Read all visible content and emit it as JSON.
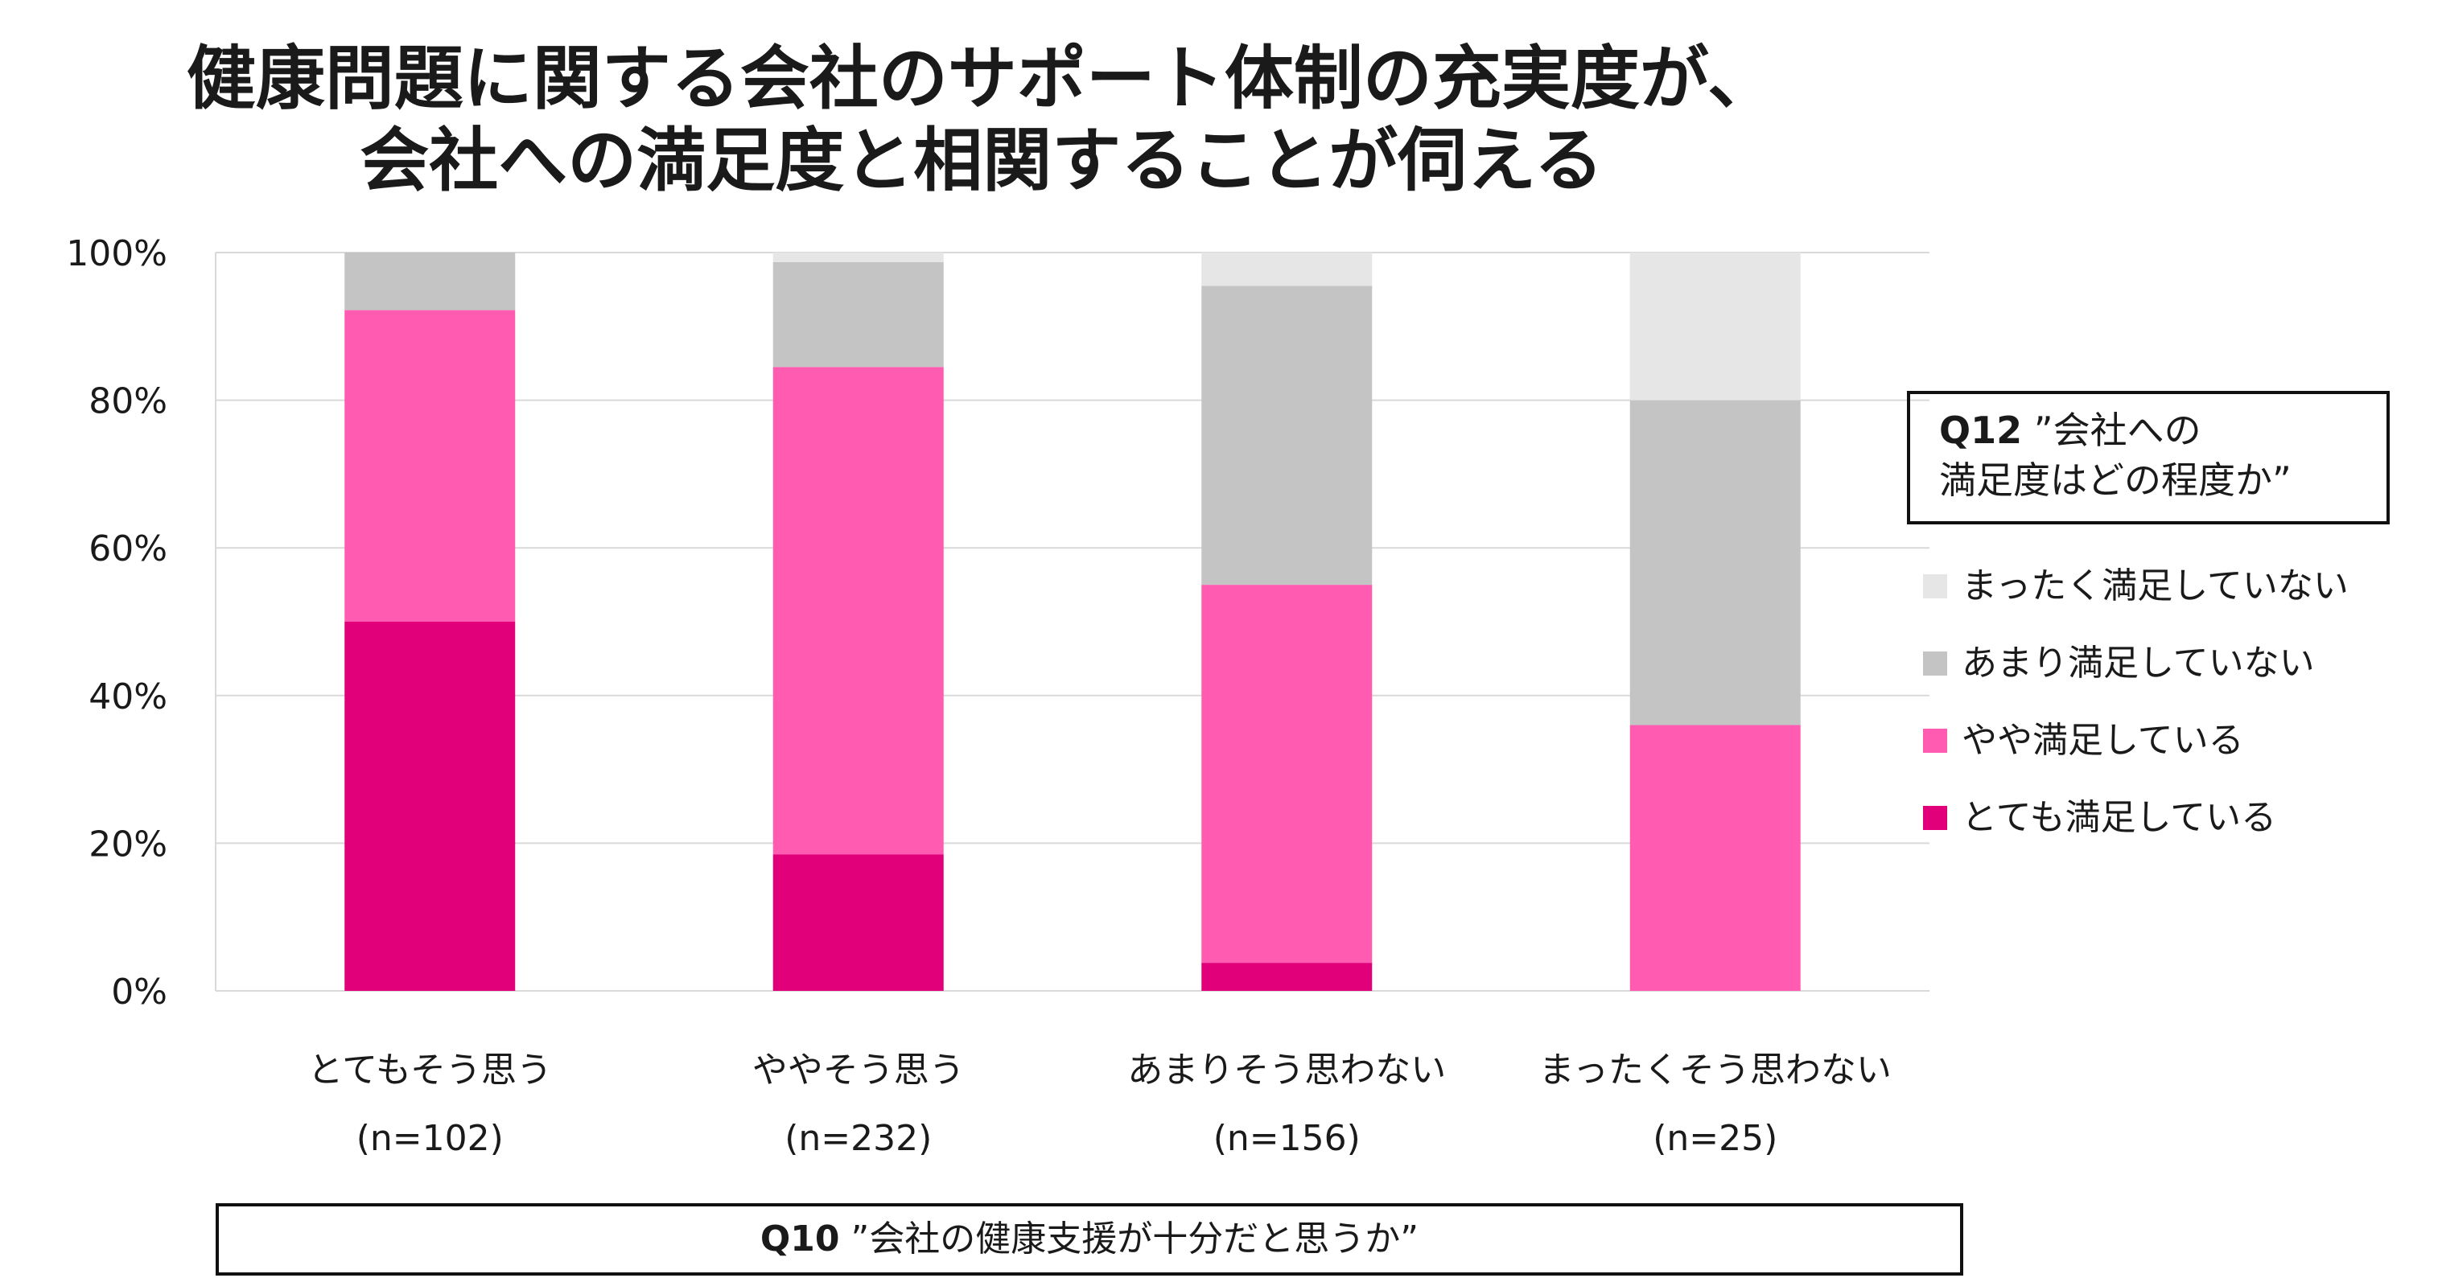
{
  "title_line1": "健康問題に関する会社のサポート体制の充実度が、",
  "title_line2": "会社への満足度と相関することが伺える",
  "x_axis_box": {
    "prefix": "Q10",
    "text": " ”会社の健康支援が十分だと思うか”"
  },
  "legend_box": {
    "prefix": "Q12",
    "text_line1": " ”会社への",
    "text_line2": "満足度はどの程度か”"
  },
  "colors": {
    "not_at_all": "#e6e6e6",
    "not_very": "#c4c4c4",
    "somewhat": "#ff5bb0",
    "very": "#e2007a",
    "gridline": "#d9d9d9"
  },
  "chart_data": {
    "type": "bar",
    "stacked": true,
    "percent": true,
    "categories": [
      "とてもそう思う",
      "ややそう思う",
      "あまりそう思わない",
      "まったくそう思わない"
    ],
    "sample_sizes": [
      "(n=102)",
      "(n=232)",
      "(n=156)",
      "(n=25)"
    ],
    "ylim": [
      0,
      100
    ],
    "yticks": [
      "0%",
      "20%",
      "40%",
      "60%",
      "80%",
      "100%"
    ],
    "grid": true,
    "legend_position": "right",
    "series": [
      {
        "name": "とても満足している",
        "color": "#e2007a",
        "values": [
          50,
          18.5,
          3.8,
          0
        ]
      },
      {
        "name": "やや満足している",
        "color": "#ff5bb0",
        "values": [
          42.2,
          66.0,
          51.2,
          36
        ]
      },
      {
        "name": "あまり満足していない",
        "color": "#c4c4c4",
        "values": [
          7.8,
          14.2,
          40.5,
          44
        ]
      },
      {
        "name": "まったく満足していない",
        "color": "#e6e6e6",
        "values": [
          0,
          1.3,
          4.5,
          20
        ]
      }
    ]
  }
}
